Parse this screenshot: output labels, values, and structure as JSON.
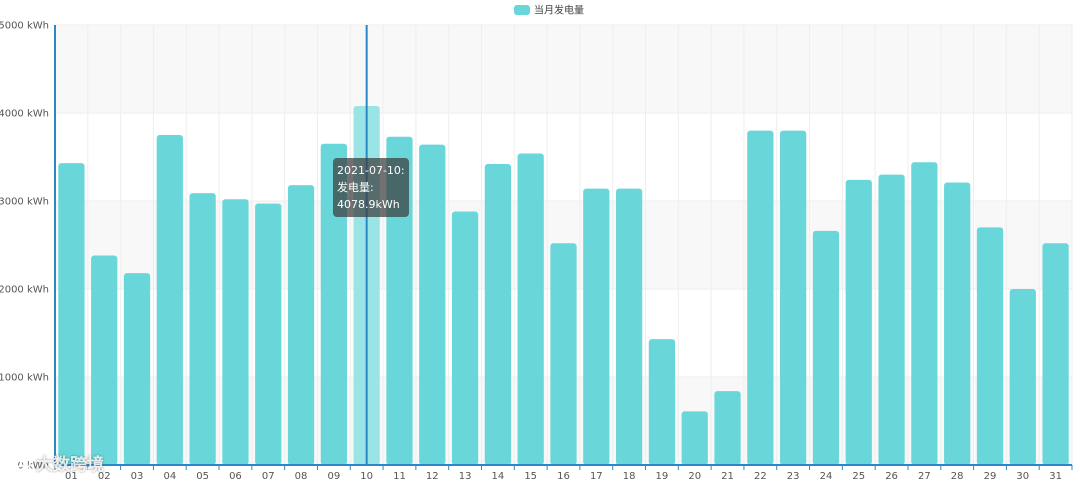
{
  "colors": {
    "bar": "#69d6d9",
    "bar_highlight": "#99e5e6",
    "axis": "#2a88c8",
    "grid": "#eeeeee",
    "band": "#f8f8f8"
  },
  "legend": {
    "label": "当月发电量",
    "position": "top-center"
  },
  "tooltip": {
    "line1": "2021-07-10:",
    "line2": "发电量:",
    "line3": "4078.9kWh"
  },
  "watermark": {
    "text": "大数跨境"
  },
  "chart_data": {
    "type": "bar",
    "categories": [
      "01",
      "02",
      "03",
      "04",
      "05",
      "06",
      "07",
      "08",
      "09",
      "10",
      "11",
      "12",
      "13",
      "14",
      "15",
      "16",
      "17",
      "18",
      "19",
      "20",
      "21",
      "22",
      "23",
      "24",
      "25",
      "26",
      "27",
      "28",
      "29",
      "30",
      "31"
    ],
    "series": [
      {
        "name": "当月发电量",
        "values": [
          3430,
          2380,
          2180,
          3750,
          3090,
          3020,
          2970,
          3180,
          3650,
          4078.9,
          3730,
          3640,
          2880,
          3420,
          3540,
          2520,
          3140,
          3140,
          1430,
          610,
          840,
          3800,
          3800,
          2660,
          3240,
          3300,
          3440,
          3210,
          2700,
          2000,
          2520
        ]
      }
    ],
    "highlighted_category": "10",
    "ylim": [
      0,
      5000
    ],
    "yticks": [
      0,
      1000,
      2000,
      3000,
      4000,
      5000
    ],
    "ytick_labels": [
      "0 kWh",
      "1000 kWh",
      "2000 kWh",
      "3000 kWh",
      "4000 kWh",
      "5000 kWh"
    ],
    "grid": true,
    "title": "",
    "xlabel": "",
    "ylabel": ""
  }
}
